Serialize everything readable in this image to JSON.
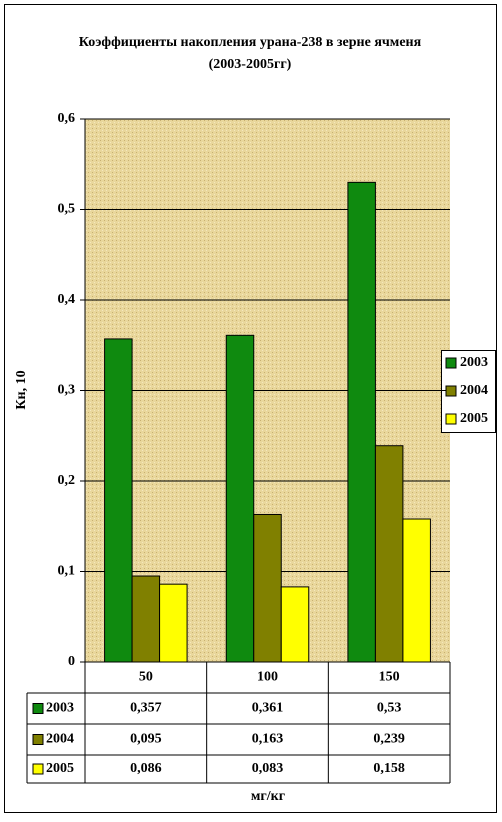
{
  "chart_data": {
    "type": "bar",
    "title": "Коэффициенты накопления урана-238 в зерне ячменя",
    "subtitle": "(2003-2005гг)",
    "y_label": "Кн, 10",
    "x_label": "мг/кг",
    "categories": [
      "50",
      "100",
      "150"
    ],
    "series": [
      {
        "name": "2003",
        "color": "#0f8a0f",
        "values": [
          0.357,
          0.361,
          0.53
        ],
        "value_labels": [
          "0,357",
          "0,361",
          "0,53"
        ]
      },
      {
        "name": "2004",
        "color": "#808000",
        "values": [
          0.095,
          0.163,
          0.239
        ],
        "value_labels": [
          "0,095",
          "0,163",
          "0,239"
        ]
      },
      {
        "name": "2005",
        "color": "#ffff00",
        "values": [
          0.086,
          0.083,
          0.158
        ],
        "value_labels": [
          "0,086",
          "0,083",
          "0,158"
        ]
      }
    ],
    "ylim": [
      0,
      0.6
    ],
    "yticks": [
      0,
      {
        "value": 0.1,
        "label": "0,1"
      },
      {
        "value": 0.2,
        "label": "0,2"
      },
      {
        "value": 0.3,
        "label": "0,3"
      },
      {
        "value": 0.4,
        "label": "0,4"
      },
      {
        "value": 0.5,
        "label": "0,5"
      },
      {
        "value": 0.6,
        "label": "0,6"
      }
    ],
    "grid": true,
    "legend": "right"
  }
}
